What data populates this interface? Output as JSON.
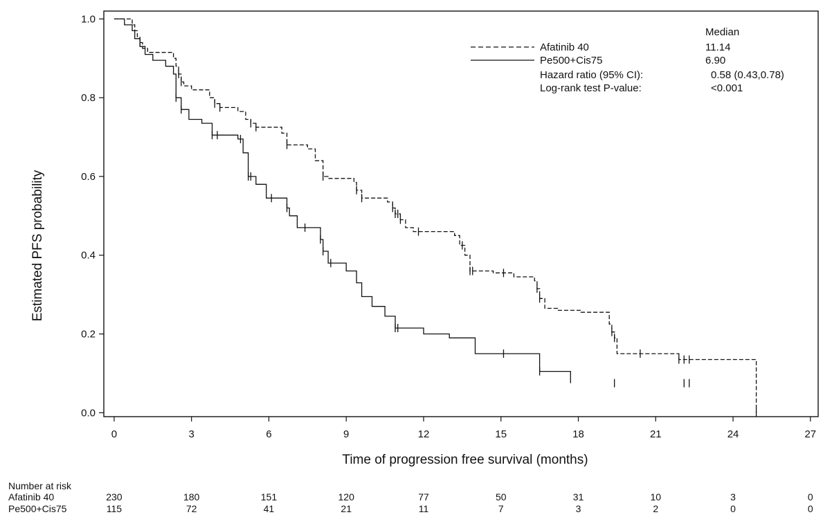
{
  "chart_data": {
    "type": "line",
    "title": "",
    "xlabel": "Time of progression free survival (months)",
    "ylabel": "Estimated PFS probability",
    "xlim": [
      -0.4,
      27.3
    ],
    "ylim": [
      -0.01,
      1.02
    ],
    "xticks": [
      0,
      3,
      6,
      9,
      12,
      15,
      18,
      21,
      24,
      27
    ],
    "yticks": [
      0.0,
      0.2,
      0.4,
      0.6,
      0.8,
      1.0
    ],
    "xtick_labels": [
      "0",
      "3",
      "6",
      "9",
      "12",
      "15",
      "18",
      "21",
      "24",
      "27"
    ],
    "ytick_labels": [
      "0.0",
      "0.2",
      "0.4",
      "0.6",
      "0.8",
      "1.0"
    ],
    "grid": false,
    "legend": {
      "placement": "top-right",
      "median_header": "Median",
      "stats": [
        {
          "label": "Hazard ratio (95% CI):",
          "value": "0.58 (0.43,0.78)"
        },
        {
          "label": "Log-rank test P-value:",
          "value": "<0.001"
        }
      ]
    },
    "series": [
      {
        "name": "Afatinib 40",
        "style": "dashed",
        "color": "#111111",
        "median": "11.14",
        "x": [
          0,
          0.7,
          0.8,
          0.9,
          1.0,
          1.1,
          1.3,
          2.3,
          2.4,
          2.5,
          2.6,
          2.7,
          3.0,
          3.7,
          3.9,
          4.1,
          4.8,
          5.1,
          5.3,
          5.5,
          6.5,
          6.7,
          7.5,
          7.8,
          8.1,
          8.3,
          9.3,
          9.4,
          9.6,
          10.6,
          10.8,
          10.9,
          11.1,
          11.3,
          11.6,
          13.2,
          13.4,
          13.6,
          13.8,
          14.7,
          15.5,
          16.3,
          16.4,
          16.5,
          16.7,
          17.2,
          18.1,
          19.2,
          19.3,
          19.4,
          19.5,
          21.9,
          24.9
        ],
        "y": [
          1.0,
          0.985,
          0.97,
          0.955,
          0.94,
          0.925,
          0.915,
          0.9,
          0.88,
          0.86,
          0.84,
          0.83,
          0.82,
          0.8,
          0.785,
          0.775,
          0.765,
          0.745,
          0.735,
          0.725,
          0.71,
          0.68,
          0.67,
          0.64,
          0.6,
          0.595,
          0.585,
          0.565,
          0.545,
          0.535,
          0.52,
          0.505,
          0.49,
          0.47,
          0.46,
          0.45,
          0.425,
          0.4,
          0.36,
          0.355,
          0.345,
          0.335,
          0.315,
          0.29,
          0.265,
          0.26,
          0.255,
          0.225,
          0.205,
          0.19,
          0.15,
          0.135,
          0.0
        ],
        "censor_x": [
          1.0,
          2.5,
          2.6,
          3.9,
          4.1,
          5.3,
          5.5,
          6.7,
          8.1,
          9.4,
          9.6,
          10.8,
          10.9,
          11.0,
          11.1,
          11.8,
          13.5,
          13.8,
          13.9,
          15.1,
          16.4,
          16.5,
          19.3,
          19.4,
          20.4,
          21.9,
          22.1,
          22.3,
          24.9
        ]
      },
      {
        "name": "Pe500+Cis75",
        "style": "solid",
        "color": "#111111",
        "median": "6.90",
        "x": [
          0,
          0.4,
          0.7,
          0.8,
          1.0,
          1.2,
          1.5,
          2.0,
          2.3,
          2.4,
          2.6,
          2.9,
          3.4,
          3.8,
          4.8,
          5.0,
          5.2,
          5.5,
          5.9,
          6.7,
          6.8,
          7.1,
          8.0,
          8.1,
          8.3,
          9.0,
          9.4,
          9.6,
          10.0,
          10.5,
          10.9,
          12.0,
          13.0,
          14.0,
          16.5,
          17.7
        ],
        "y": [
          1.0,
          0.985,
          0.97,
          0.95,
          0.93,
          0.91,
          0.895,
          0.88,
          0.86,
          0.8,
          0.77,
          0.745,
          0.735,
          0.705,
          0.695,
          0.66,
          0.6,
          0.58,
          0.545,
          0.52,
          0.5,
          0.47,
          0.44,
          0.41,
          0.38,
          0.36,
          0.33,
          0.295,
          0.27,
          0.245,
          0.215,
          0.2,
          0.19,
          0.15,
          0.105,
          0.075
        ],
        "censor_x": [
          2.4,
          2.6,
          3.8,
          4.0,
          4.9,
          5.2,
          5.3,
          6.1,
          6.7,
          7.4,
          8.0,
          8.1,
          8.4,
          10.9,
          11.0,
          15.1,
          16.5,
          19.4,
          22.1,
          22.3
        ]
      }
    ],
    "risk_table": {
      "title": "Number at risk",
      "times": [
        0,
        3,
        6,
        9,
        12,
        15,
        18,
        21,
        24,
        27
      ],
      "rows": [
        {
          "label": "Afatinib 40",
          "values": [
            "230",
            "180",
            "151",
            "120",
            "77",
            "50",
            "31",
            "10",
            "3",
            "0"
          ]
        },
        {
          "label": "Pe500+Cis75",
          "values": [
            "115",
            "72",
            "41",
            "21",
            "11",
            "7",
            "3",
            "2",
            "0",
            "0"
          ]
        }
      ]
    }
  }
}
